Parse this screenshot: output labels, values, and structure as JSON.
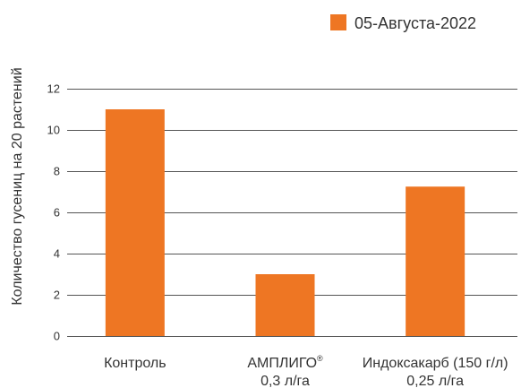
{
  "chart_data": {
    "type": "bar",
    "title": "",
    "ylabel": "Количество гусениц на 20 растений",
    "xlabel": "",
    "ylim": [
      0,
      12
    ],
    "yticks": [
      0,
      2,
      4,
      6,
      8,
      10,
      12
    ],
    "grid": true,
    "legend_position": "top-right",
    "categories": [
      {
        "lines": [
          "Контроль"
        ],
        "sup": ""
      },
      {
        "lines": [
          "АМПЛИГО",
          "0,3 л/га"
        ],
        "sup": "®"
      },
      {
        "lines": [
          "Индоксакарб (150 г/л)",
          "0,25 л/га"
        ],
        "sup": ""
      }
    ],
    "series": [
      {
        "name": "05-Августа-2022",
        "color": "#ee7623",
        "values": [
          11.0,
          3.0,
          7.25
        ]
      }
    ],
    "colors": {
      "bar": "#ee7623",
      "grid": "#555555",
      "text": "#333333"
    }
  }
}
